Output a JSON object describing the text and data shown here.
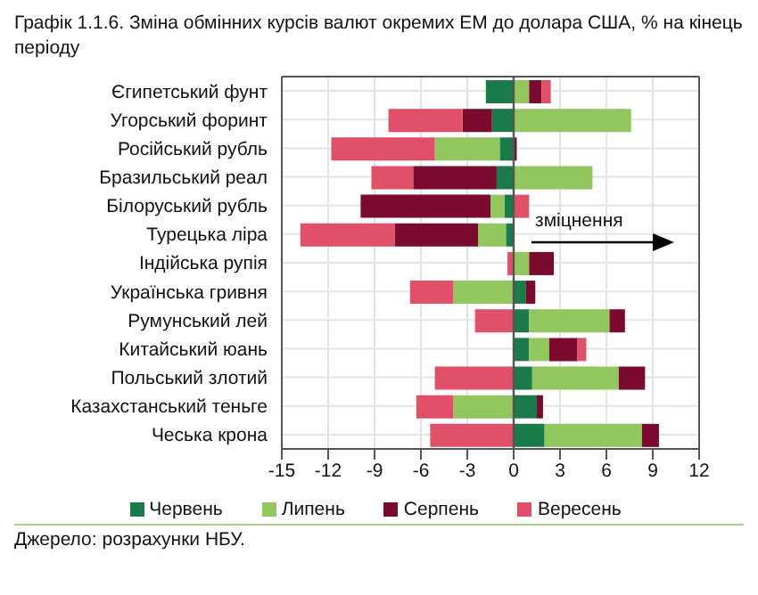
{
  "chart_data": {
    "type": "bar",
    "orientation": "horizontal",
    "stacked": true,
    "title": "Графік 1.1.6. Зміна обмінних курсів валют окремих ЕМ до долара США, % на кінець періоду",
    "categories": [
      "Єгипетський фунт",
      "Угорський форинт",
      "Російський рубль",
      "Бразильський реал",
      "Білоруський рубль",
      "Турецька ліра",
      "Індійська рупія",
      "Українська гривня",
      "Румунський лей",
      "Китайський юань",
      "Польський злотий",
      "Казахстанський теньге",
      "Чеська крона"
    ],
    "series": [
      {
        "name": "Червень",
        "color": "#1a7a4a",
        "values": [
          -1.8,
          -1.4,
          -0.9,
          -1.1,
          -0.6,
          -0.5,
          0,
          0.8,
          1.0,
          1.0,
          1.2,
          1.5,
          2.0
        ]
      },
      {
        "name": "Липень",
        "color": "#92c65e",
        "values": [
          1.0,
          7.6,
          -4.2,
          5.1,
          -0.9,
          -1.8,
          1.0,
          -3.9,
          5.2,
          1.3,
          5.6,
          -3.9,
          6.3
        ]
      },
      {
        "name": "Серпень",
        "color": "#7a0a2e",
        "values": [
          0.8,
          -1.9,
          0.2,
          -5.4,
          -8.4,
          -5.4,
          1.6,
          0.6,
          1.0,
          1.8,
          1.7,
          0.4,
          1.1
        ]
      },
      {
        "name": "Вересень",
        "color": "#e05068",
        "values": [
          0.6,
          -4.8,
          -6.7,
          -2.7,
          1.0,
          -6.1,
          -0.4,
          -2.8,
          -2.5,
          0.6,
          -5.1,
          -2.4,
          -5.4
        ]
      }
    ],
    "xlim": [
      -15,
      12
    ],
    "xticks": [
      -15,
      -12,
      -9,
      -6,
      -3,
      0,
      3,
      6,
      9,
      12
    ],
    "ref_lines": [
      {
        "axis": "x",
        "value": 0,
        "color": "#555555"
      }
    ],
    "annotations": [
      "зміцнення",
      "Джерело: розрахунки НБУ."
    ],
    "grid": true,
    "legend": "bottom"
  }
}
